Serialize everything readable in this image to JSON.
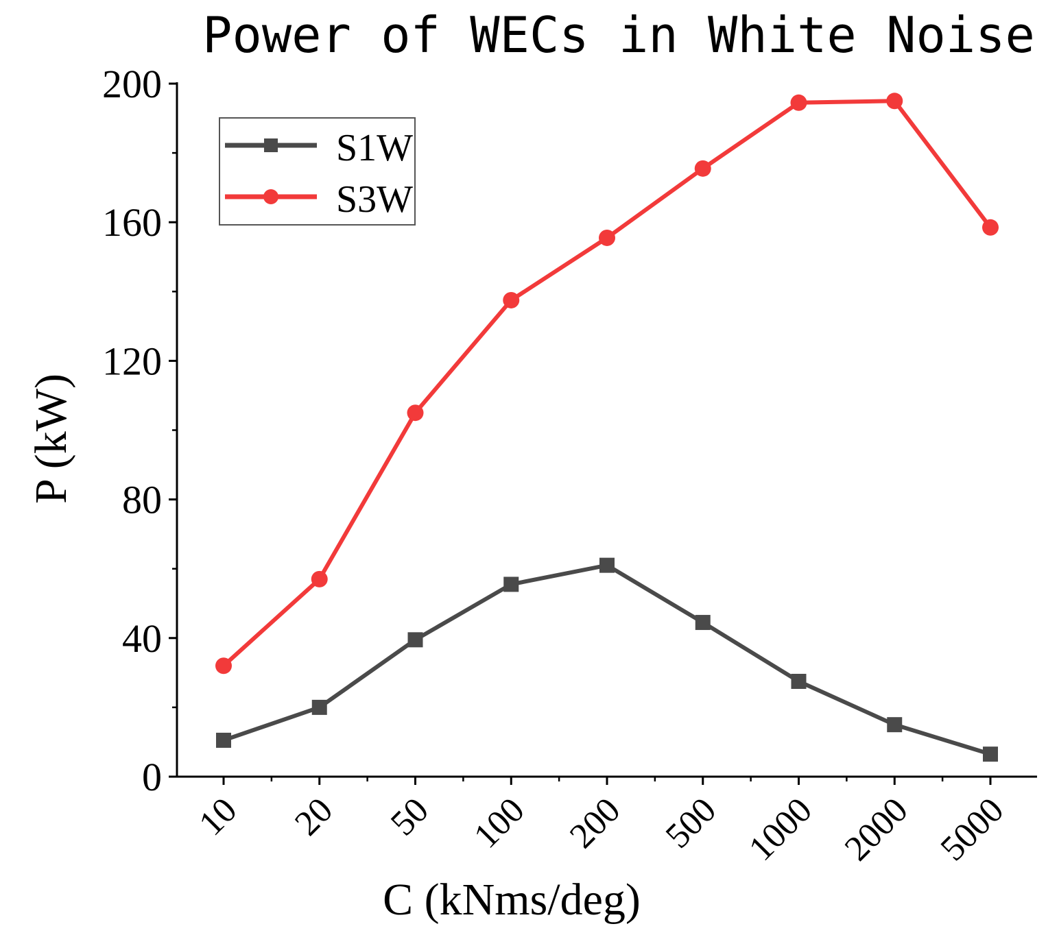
{
  "chart_data": {
    "type": "line",
    "title": "Power of WECs in White Noise",
    "xlabel": "C (kNms/deg)",
    "ylabel": "P (kW)",
    "categories": [
      "10",
      "20",
      "50",
      "100",
      "200",
      "500",
      "1000",
      "2000",
      "5000"
    ],
    "ylim": [
      0,
      200
    ],
    "yticks": [
      0,
      40,
      80,
      120,
      160,
      200
    ],
    "grid": false,
    "legend_position": "top-left",
    "series": [
      {
        "name": "S1W",
        "marker": "square",
        "color": "#4a4a4a",
        "values": [
          10.5,
          20,
          39.5,
          55.5,
          61,
          44.5,
          27.5,
          15,
          6.5
        ]
      },
      {
        "name": "S3W",
        "marker": "circle",
        "color": "#f23a3a",
        "values": [
          32,
          57,
          105,
          137.5,
          155.5,
          175.5,
          194.5,
          195,
          158.5
        ]
      }
    ]
  }
}
